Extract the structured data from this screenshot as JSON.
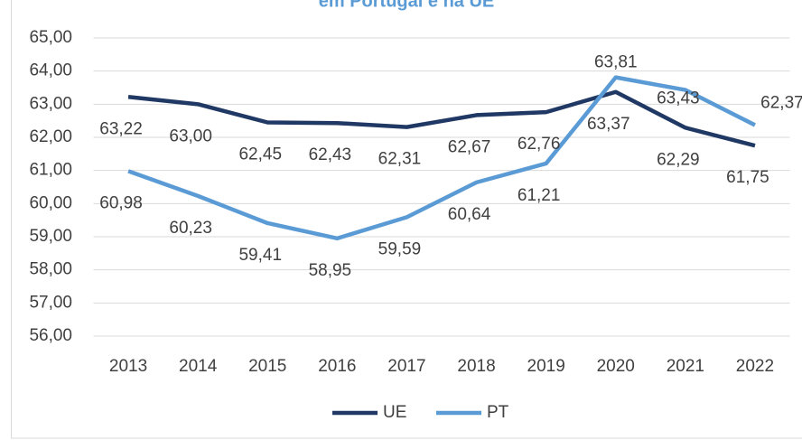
{
  "chart_data": {
    "type": "line",
    "title": "em Portugal e na UE",
    "categories": [
      "2013",
      "2014",
      "2015",
      "2016",
      "2017",
      "2018",
      "2019",
      "2020",
      "2021",
      "2022"
    ],
    "series": [
      {
        "name": "UE",
        "color": "#203864",
        "values": [
          63.22,
          63.0,
          62.45,
          62.43,
          62.31,
          62.67,
          62.76,
          63.37,
          62.29,
          61.75
        ],
        "value_labels": [
          "63,22",
          "63,00",
          "62,45",
          "62,43",
          "62,31",
          "62,67",
          "62,76",
          "63,37",
          "62,29",
          "61,75"
        ]
      },
      {
        "name": "PT",
        "color": "#5b9bd5",
        "values": [
          60.98,
          60.23,
          59.41,
          58.95,
          59.59,
          60.64,
          61.21,
          63.81,
          63.43,
          62.37
        ],
        "value_labels": [
          "60,98",
          "60,23",
          "59,41",
          "58,95",
          "59,59",
          "60,64",
          "61,21",
          "63,81",
          "63,43",
          "62,37"
        ]
      }
    ],
    "ylim": [
      56,
      65
    ],
    "yticks": [
      {
        "value": 56,
        "label": "56,00"
      },
      {
        "value": 57,
        "label": "57,00"
      },
      {
        "value": 58,
        "label": "58,00"
      },
      {
        "value": 59,
        "label": "59,00"
      },
      {
        "value": 60,
        "label": "60,00"
      },
      {
        "value": 61,
        "label": "61,00"
      },
      {
        "value": 62,
        "label": "62,00"
      },
      {
        "value": 63,
        "label": "63,00"
      },
      {
        "value": 64,
        "label": "64,00"
      },
      {
        "value": 65,
        "label": "65,00"
      }
    ],
    "legend": "bottom"
  }
}
